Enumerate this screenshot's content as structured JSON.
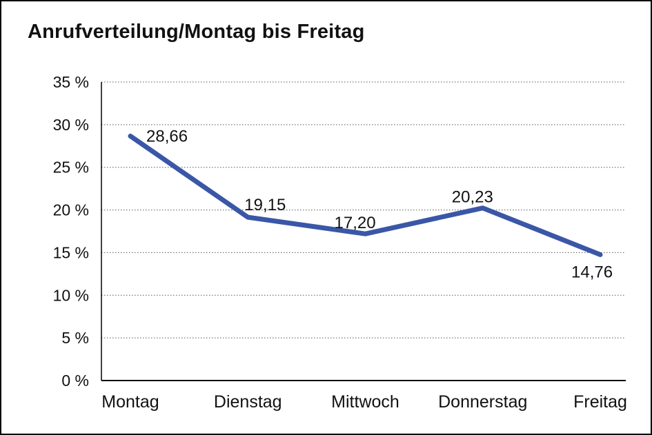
{
  "page": {
    "background": "#ffffff",
    "frame_border_color": "#000000"
  },
  "chart_data": {
    "type": "line",
    "title": "Anrufverteilung/Montag bis Freitag",
    "categories": [
      "Montag",
      "Dienstag",
      "Mittwoch",
      "Donnerstag",
      "Freitag"
    ],
    "values": [
      28.66,
      19.15,
      17.2,
      20.23,
      14.76
    ],
    "value_labels": [
      "28,66",
      "19,15",
      "17,20",
      "20,23",
      "14,76"
    ],
    "xlabel": "",
    "ylabel": "",
    "ylim": [
      0,
      35
    ],
    "ytick_step": 5,
    "ytick_labels": [
      "0 %",
      "5 %",
      "10 %",
      "15 %",
      "20 %",
      "25 %",
      "30 %",
      "35 %"
    ],
    "grid": "horizontal-dotted",
    "legend": "none",
    "line_color": "#3a57a7",
    "grid_color": "#555555",
    "axis_color": "#000000",
    "text_color": "#111111"
  }
}
